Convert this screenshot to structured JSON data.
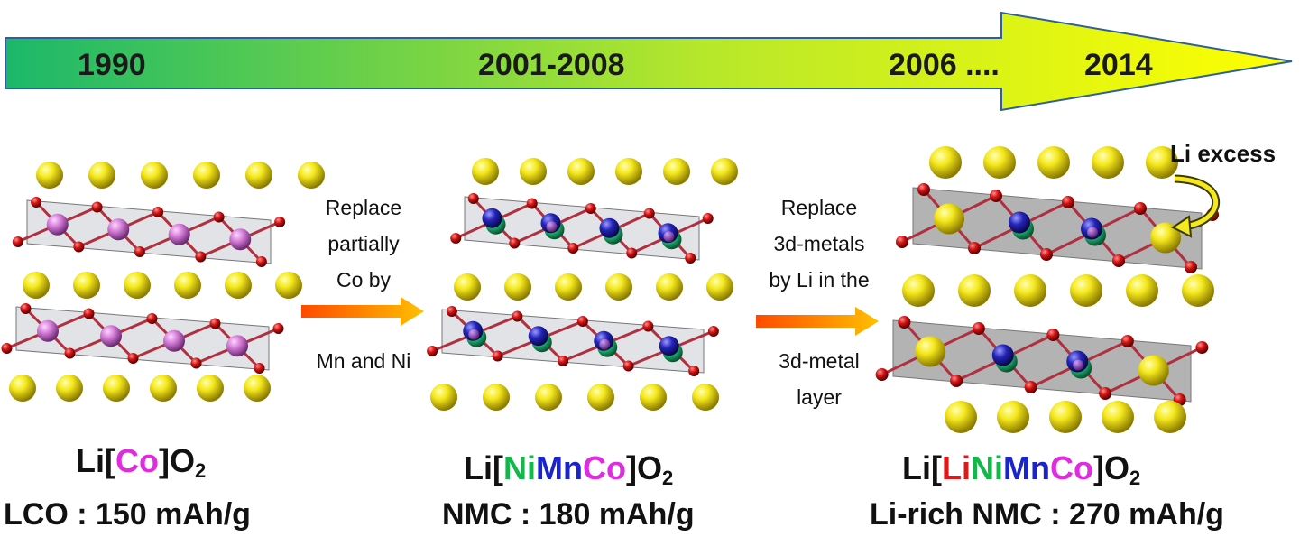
{
  "timeline": {
    "years": [
      "1990",
      "2001-2008",
      "2006 ....",
      "2014"
    ],
    "colors": {
      "start": "#1bb86a",
      "end": "#ffff00",
      "border": "#2e5f9a"
    }
  },
  "transitions": [
    {
      "lines": [
        "Replace",
        "partially",
        "Co by"
      ],
      "tail": "Mn and Ni"
    },
    {
      "lines": [
        "Replace",
        "3d-metals",
        "by Li in the"
      ],
      "tail_lines": [
        "3d-metal",
        "layer"
      ]
    }
  ],
  "materials": [
    {
      "formula": [
        "Li[",
        "Co",
        "]O",
        "2"
      ],
      "colors": [
        "#111111",
        "#e02be0",
        "#111111",
        "#111111"
      ],
      "capacity": "LCO :  150 mAh/g"
    },
    {
      "formula": [
        "Li[",
        "Ni",
        "Mn",
        "Co",
        "]O",
        "2"
      ],
      "colors": [
        "#111111",
        "#12b84a",
        "#1a24c8",
        "#e02be0",
        "#111111",
        "#111111"
      ],
      "capacity": "NMC : 180 mAh/g"
    },
    {
      "formula": [
        "Li[",
        "Li",
        "Ni",
        "Mn",
        "Co",
        "]O",
        "2"
      ],
      "colors": [
        "#111111",
        "#e01818",
        "#12b84a",
        "#1a24c8",
        "#e02be0",
        "#111111",
        "#111111"
      ],
      "capacity": "Li-rich NMC : 270 mAh/g"
    }
  ],
  "annotation": {
    "li_excess": "Li excess"
  },
  "atom_colors": {
    "li": "#f5e81c",
    "oxygen": "#d41414",
    "co": "#d27ad6",
    "mn": "#2424b8",
    "ni": "#22c47a"
  }
}
